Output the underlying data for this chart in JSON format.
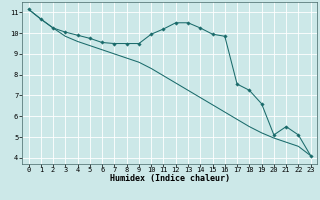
{
  "xlabel": "Humidex (Indice chaleur)",
  "bg_color": "#cce8e8",
  "grid_color": "#ffffff",
  "line_color": "#1a6b6b",
  "xlim": [
    -0.5,
    23.5
  ],
  "ylim": [
    3.7,
    11.5
  ],
  "yticks": [
    4,
    5,
    6,
    7,
    8,
    9,
    10,
    11
  ],
  "xticks": [
    0,
    1,
    2,
    3,
    4,
    5,
    6,
    7,
    8,
    9,
    10,
    11,
    12,
    13,
    14,
    15,
    16,
    17,
    18,
    19,
    20,
    21,
    22,
    23
  ],
  "series1_x": [
    0,
    1,
    2,
    3,
    4,
    5,
    6,
    7,
    8,
    9,
    10,
    11,
    12,
    13,
    14,
    15,
    16,
    17,
    18,
    19,
    20,
    21,
    22,
    23
  ],
  "series1_y": [
    11.15,
    10.68,
    10.25,
    10.05,
    9.9,
    9.75,
    9.55,
    9.5,
    9.5,
    9.5,
    9.95,
    10.2,
    10.5,
    10.5,
    10.25,
    9.95,
    9.85,
    7.55,
    7.25,
    6.6,
    5.1,
    5.5,
    5.1,
    4.1
  ],
  "series2_x": [
    0,
    1,
    2,
    3,
    4,
    5,
    6,
    7,
    8,
    9,
    10,
    11,
    12,
    13,
    14,
    15,
    16,
    17,
    18,
    19,
    20,
    21,
    22,
    23
  ],
  "series2_y": [
    11.15,
    10.68,
    10.25,
    9.85,
    9.6,
    9.4,
    9.2,
    9.0,
    8.8,
    8.6,
    8.3,
    7.95,
    7.6,
    7.25,
    6.9,
    6.55,
    6.2,
    5.85,
    5.5,
    5.2,
    4.95,
    4.75,
    4.55,
    4.1
  ]
}
